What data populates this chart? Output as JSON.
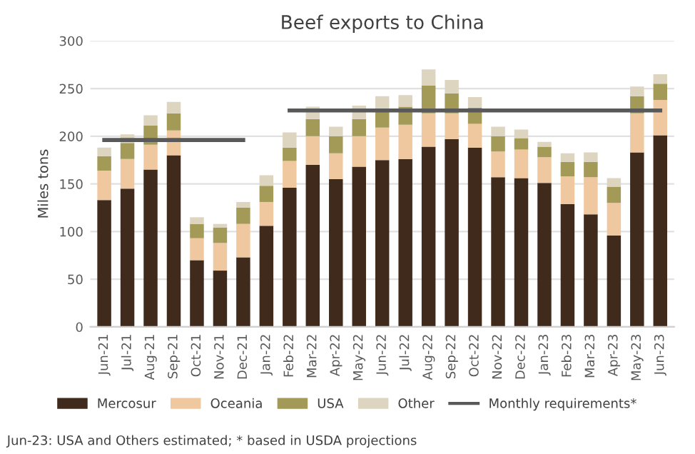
{
  "chart_data": {
    "type": "bar",
    "title": "Beef exports to China",
    "ylabel": "Miles tons",
    "stacked": true,
    "categories": [
      "Jun-21",
      "Jul-21",
      "Aug-21",
      "Sep-21",
      "Oct-21",
      "Nov-21",
      "Dec-21",
      "Jan-22",
      "Feb-22",
      "Mar-22",
      "Apr-22",
      "May-22",
      "Jun-22",
      "Jul-22",
      "Aug-22",
      "Sep-22",
      "Oct-22",
      "Nov-22",
      "Dec-22",
      "Jan-23",
      "Feb-23",
      "Mar-23",
      "Apr-23",
      "May-23",
      "Jun-23"
    ],
    "series": [
      {
        "name": "Mercosur",
        "color": "#3f2a1b",
        "values": [
          133,
          145,
          165,
          180,
          70,
          59,
          73,
          106,
          146,
          170,
          155,
          168,
          175,
          176,
          189,
          197,
          188,
          157,
          156,
          151,
          129,
          118,
          96,
          183,
          201
        ]
      },
      {
        "name": "Oceania",
        "color": "#f0c8a0",
        "values": [
          31,
          31,
          26,
          26,
          23,
          29,
          35,
          25,
          28,
          30,
          27,
          32,
          34,
          36,
          35,
          27,
          25,
          27,
          30,
          27,
          29,
          39,
          34,
          41,
          37
        ]
      },
      {
        "name": "USA",
        "color": "#a39a57",
        "values": [
          15,
          17,
          20,
          18,
          15,
          16,
          17,
          17,
          14,
          18,
          18,
          18,
          18,
          19,
          29,
          21,
          17,
          16,
          12,
          11,
          15,
          16,
          17,
          18,
          17
        ]
      },
      {
        "name": "Other",
        "color": "#ddd5bf",
        "values": [
          9,
          9,
          11,
          12,
          7,
          4,
          6,
          11,
          16,
          13,
          10,
          14,
          15,
          12,
          17,
          14,
          11,
          10,
          9,
          5,
          9,
          10,
          9,
          10,
          10
        ]
      },
      {
        "name": "Monthly requirements*",
        "type": "line",
        "color": "#595959",
        "values": [
          196,
          196,
          196,
          196,
          196,
          196,
          196,
          null,
          227,
          227,
          227,
          227,
          227,
          227,
          227,
          227,
          227,
          227,
          227,
          227,
          227,
          227,
          227,
          227,
          227
        ]
      }
    ],
    "ylim": [
      0,
      300
    ],
    "yticks": [
      0,
      50,
      100,
      150,
      200,
      250,
      300
    ],
    "grid": "y",
    "legend": "bottom",
    "annotations": [
      "Jun-23: USA and Others estimated; * based in USDA projections"
    ]
  }
}
